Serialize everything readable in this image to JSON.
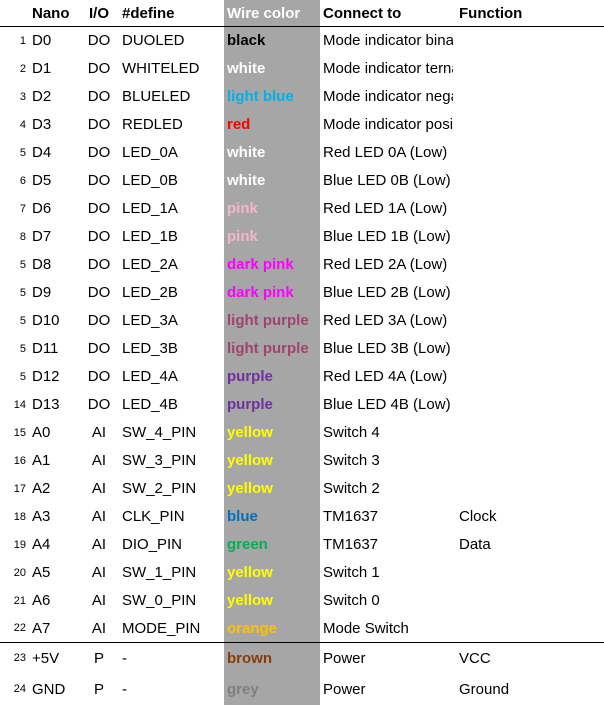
{
  "headers": {
    "nano": "Nano",
    "io": "I/O",
    "define": "#define",
    "wire": "Wire color",
    "connect": "Connect to",
    "function": "Function"
  },
  "rows": [
    {
      "idx": "1",
      "nano": "D0",
      "io": "DO",
      "define": "DUOLED",
      "wire": "black",
      "wire_color": "#000000",
      "connect": "Mode indicator binair",
      "function": ""
    },
    {
      "idx": "2",
      "nano": "D1",
      "io": "DO",
      "define": "WHITELED",
      "wire": "white",
      "wire_color": "#ffffff",
      "connect": "Mode indicator ternair",
      "function": ""
    },
    {
      "idx": "3",
      "nano": "D2",
      "io": "DO",
      "define": "BLUELED",
      "wire": "light blue",
      "wire_color": "#00b0f0",
      "connect": "Mode indicator negative values",
      "function": ""
    },
    {
      "idx": "4",
      "nano": "D3",
      "io": "DO",
      "define": "REDLED",
      "wire": "red",
      "wire_color": "#ff0000",
      "connect": "Mode indicator positive values",
      "function": ""
    },
    {
      "idx": "5",
      "nano": "D4",
      "io": "DO",
      "define": "LED_0A",
      "wire": "white",
      "wire_color": "#ffffff",
      "connect": "Red LED 0A (Low)",
      "function": ""
    },
    {
      "idx": "6",
      "nano": "D5",
      "io": "DO",
      "define": "LED_0B",
      "wire": "white",
      "wire_color": "#ffffff",
      "connect": "Blue LED 0B (Low)",
      "function": ""
    },
    {
      "idx": "7",
      "nano": "D6",
      "io": "DO",
      "define": "LED_1A",
      "wire": "pink",
      "wire_color": "#f4b6c8",
      "connect": "Red LED 1A (Low)",
      "function": ""
    },
    {
      "idx": "8",
      "nano": "D7",
      "io": "DO",
      "define": "LED_1B",
      "wire": "pink",
      "wire_color": "#f4b6c8",
      "connect": "Blue LED 1B (Low)",
      "function": ""
    },
    {
      "idx": "5",
      "nano": "D8",
      "io": "DO",
      "define": "LED_2A",
      "wire": "dark pink",
      "wire_color": "#ff00ff",
      "connect": "Red LED 2A (Low)",
      "function": ""
    },
    {
      "idx": "5",
      "nano": "D9",
      "io": "DO",
      "define": "LED_2B",
      "wire": "dark pink",
      "wire_color": "#ff00ff",
      "connect": "Blue LED 2B (Low)",
      "function": ""
    },
    {
      "idx": "5",
      "nano": "D10",
      "io": "DO",
      "define": "LED_3A",
      "wire": "light purple",
      "wire_color": "#a0446e",
      "connect": "Red LED 3A (Low)",
      "function": ""
    },
    {
      "idx": "5",
      "nano": "D11",
      "io": "DO",
      "define": "LED_3B",
      "wire": "light purple",
      "wire_color": "#a0446e",
      "connect": "Blue LED 3B (Low)",
      "function": ""
    },
    {
      "idx": "5",
      "nano": "D12",
      "io": "DO",
      "define": "LED_4A",
      "wire": "purple",
      "wire_color": "#7030a0",
      "connect": "Red LED 4A (Low)",
      "function": ""
    },
    {
      "idx": "14",
      "nano": "D13",
      "io": "DO",
      "define": "LED_4B",
      "wire": "purple",
      "wire_color": "#7030a0",
      "connect": "Blue LED 4B (Low)",
      "function": ""
    },
    {
      "idx": "15",
      "nano": "A0",
      "io": "AI",
      "define": "SW_4_PIN",
      "wire": "yellow",
      "wire_color": "#ffff00",
      "connect": "Switch 4",
      "function": ""
    },
    {
      "idx": "16",
      "nano": "A1",
      "io": "AI",
      "define": "SW_3_PIN",
      "wire": "yellow",
      "wire_color": "#ffff00",
      "connect": "Switch 3",
      "function": ""
    },
    {
      "idx": "17",
      "nano": "A2",
      "io": "AI",
      "define": "SW_2_PIN",
      "wire": "yellow",
      "wire_color": "#ffff00",
      "connect": "Switch 2",
      "function": ""
    },
    {
      "idx": "18",
      "nano": "A3",
      "io": "AI",
      "define": "CLK_PIN",
      "wire": "blue",
      "wire_color": "#0070c0",
      "connect": "TM1637",
      "function": "Clock"
    },
    {
      "idx": "19",
      "nano": "A4",
      "io": "AI",
      "define": "DIO_PIN",
      "wire": "green",
      "wire_color": "#00b050",
      "connect": "TM1637",
      "function": "Data"
    },
    {
      "idx": "20",
      "nano": "A5",
      "io": "AI",
      "define": "SW_1_PIN",
      "wire": "yellow",
      "wire_color": "#ffff00",
      "connect": "Switch 1",
      "function": ""
    },
    {
      "idx": "21",
      "nano": "A6",
      "io": "AI",
      "define": "SW_0_PIN",
      "wire": "yellow",
      "wire_color": "#ffff00",
      "connect": "Switch 0",
      "function": ""
    },
    {
      "idx": "22",
      "nano": "A7",
      "io": "AI",
      "define": "MODE_PIN",
      "wire": "orange",
      "wire_color": "#ffc000",
      "connect": "Mode Switch",
      "function": ""
    },
    {
      "idx": "23",
      "nano": "+5V",
      "io": "P",
      "define": "-",
      "wire": "brown",
      "wire_color": "#843c0c",
      "connect": "Power",
      "function": "VCC"
    },
    {
      "idx": "24",
      "nano": "GND",
      "io": "P",
      "define": "-",
      "wire": "grey",
      "wire_color": "#7f7f7f",
      "connect": "Power",
      "function": "Ground"
    }
  ]
}
